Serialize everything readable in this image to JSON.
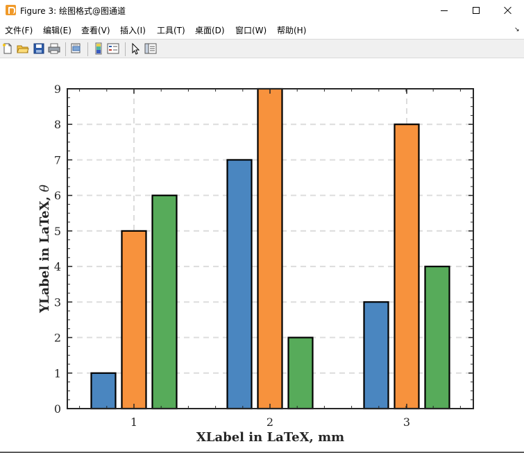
{
  "window": {
    "title": "Figure 3: 绘图格式@图通道",
    "app_icon": "matlab-figure-icon",
    "controls": [
      "minimize-icon",
      "maximize-icon",
      "close-icon"
    ]
  },
  "menu": {
    "items": [
      "文件(F)",
      "编辑(E)",
      "查看(V)",
      "插入(I)",
      "工具(T)",
      "桌面(D)",
      "窗口(W)",
      "帮助(H)"
    ],
    "overflow": "↘"
  },
  "toolbar": {
    "buttons": [
      "new-figure-icon",
      "open-file-icon",
      "save-icon",
      "print-icon",
      "print-preview-icon",
      "colorbar-icon",
      "legend-icon",
      "pointer-icon",
      "property-editor-icon"
    ]
  },
  "chart_data": {
    "type": "bar",
    "categories": [
      "1",
      "2",
      "3"
    ],
    "series": [
      {
        "values": [
          1,
          7,
          3
        ],
        "color": "#4a86c0"
      },
      {
        "values": [
          5,
          9,
          8
        ],
        "color": "#f7923d"
      },
      {
        "values": [
          6,
          2,
          4
        ],
        "color": "#57ab5a"
      }
    ],
    "xlabel": "XLabel in LaTeX, mm",
    "ylabel": "YLabel in LaTeX, θ",
    "ylabel_symbol": "θ",
    "ylabel_text": "YLabel in LaTeX,",
    "ylim": [
      0,
      9
    ],
    "yticks": [
      "0",
      "1",
      "2",
      "3",
      "4",
      "5",
      "6",
      "7",
      "8",
      "9"
    ],
    "grid": true,
    "grid_style": "dashed",
    "legend": "none"
  }
}
